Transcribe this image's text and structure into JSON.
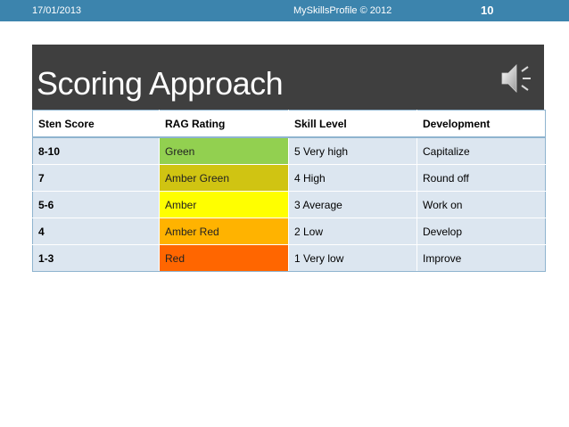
{
  "header": {
    "date": "17/01/2013",
    "center_text": "MySkillsProfile © 2012",
    "page_number": "10"
  },
  "slide": {
    "title": "Scoring Approach",
    "audio_icon": "speaker-icon"
  },
  "table": {
    "headers": [
      "Sten Score",
      " RAG Rating",
      "Skill Level",
      "Development"
    ],
    "rows": [
      {
        "sten": "8-10",
        "rag": "Green",
        "rag_color": "#92d050",
        "skill": "5 Very high",
        "development": "Capitalize"
      },
      {
        "sten": "7",
        "rag": "Amber Green",
        "rag_color": "#d0c412",
        "skill": "4 High",
        "development": "Round off"
      },
      {
        "sten": "5-6",
        "rag": "Amber",
        "rag_color": "#ffff00",
        "skill": "3 Average",
        "development": "Work on"
      },
      {
        "sten": "4",
        "rag": "Amber Red",
        "rag_color": "#ffb300",
        "skill": "2 Low",
        "development": "Develop"
      },
      {
        "sten": "1-3",
        "rag": "Red",
        "rag_color": "#ff6600",
        "skill": "1 Very low",
        "development": "Improve"
      }
    ]
  },
  "colors": {
    "header_bar": "#3c84ad",
    "title_bar": "#3f3f3f",
    "row_fill": "#dce6f0"
  }
}
